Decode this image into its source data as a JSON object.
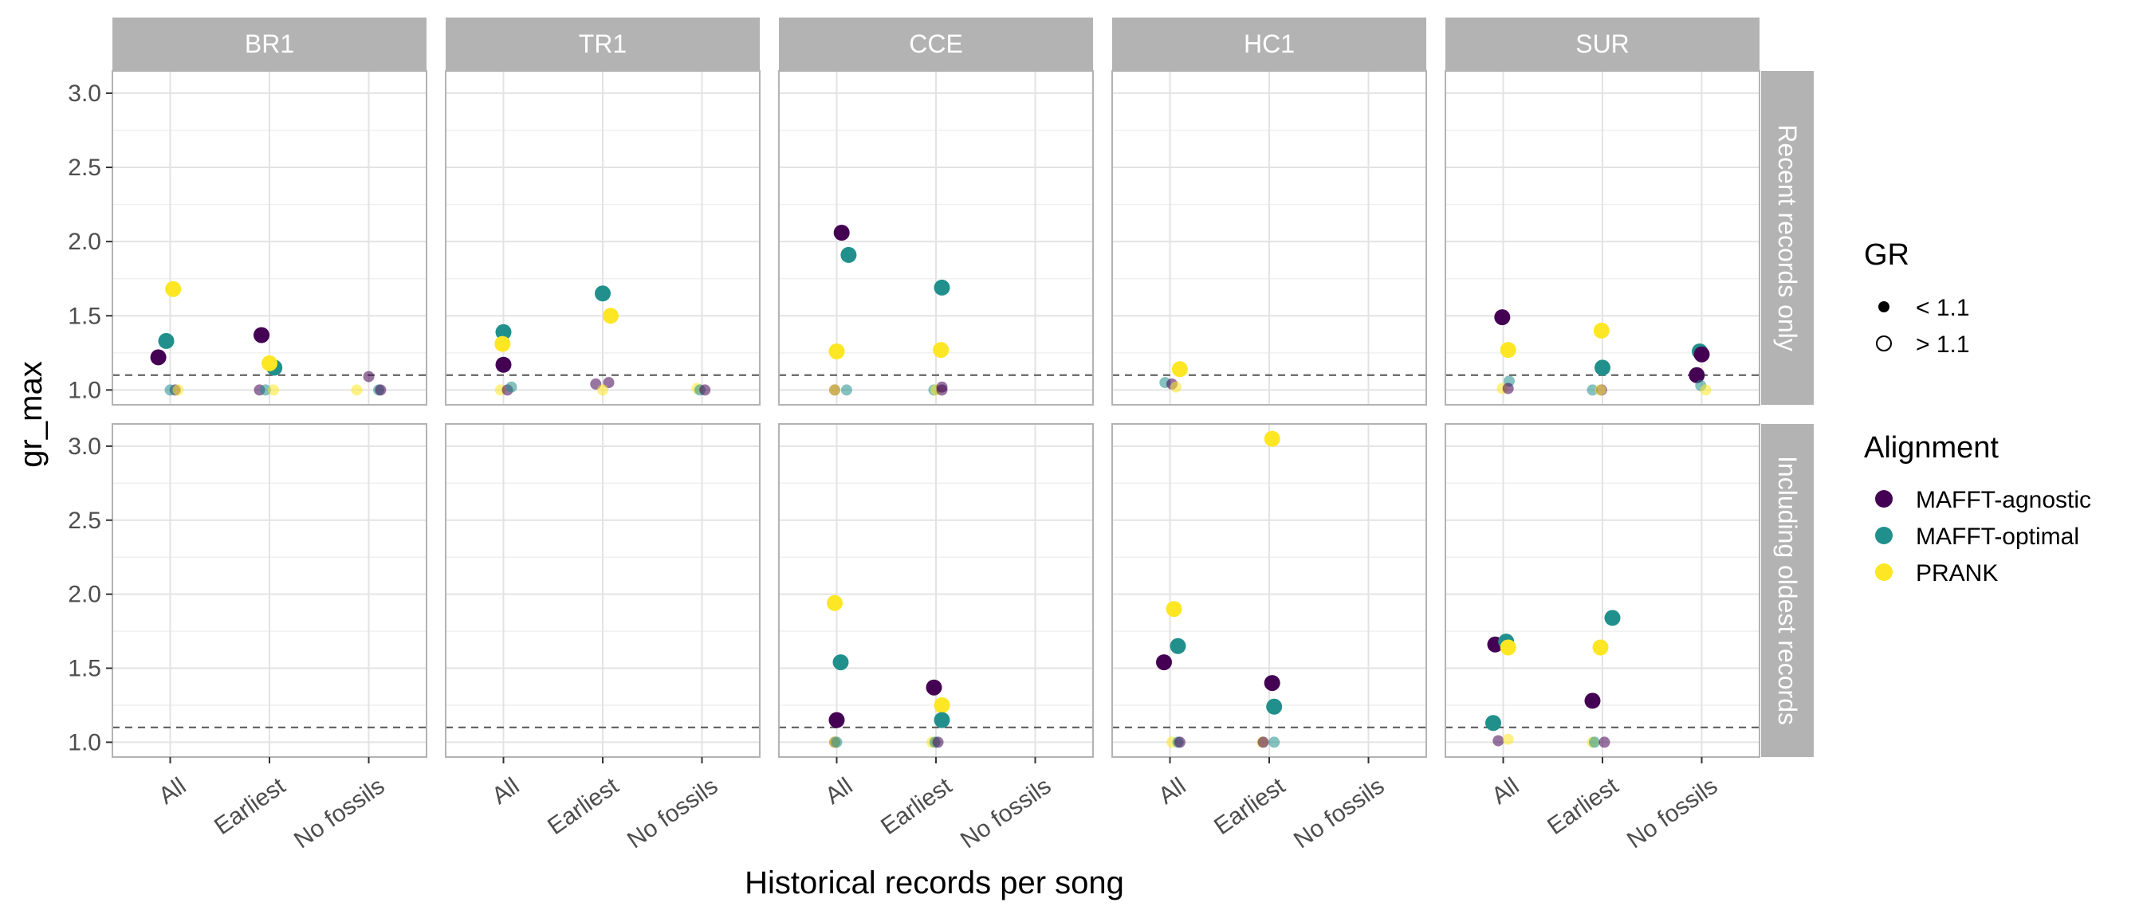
{
  "chart_data": {
    "type": "scatter",
    "xlabel": "Historical records per song",
    "ylabel": "gr_max",
    "categories": [
      "All",
      "Earliest",
      "No fossils"
    ],
    "ylim": [
      0.9,
      3.15
    ],
    "yticks": [
      1.0,
      1.5,
      2.0,
      2.5,
      3.0
    ],
    "ytick_labels": [
      "1.0",
      "1.5",
      "2.0",
      "2.5",
      "3.0"
    ],
    "reference_line": 1.1,
    "grid": true,
    "columns": [
      "BR1",
      "TR1",
      "CCE",
      "HC1",
      "SUR"
    ],
    "rows": [
      "Recent records only",
      "Including oldest records"
    ],
    "legend_position": "right",
    "legend": {
      "gr_title": "GR",
      "gr_items": [
        "< 1.1",
        "> 1.1"
      ],
      "alignment_title": "Alignment",
      "alignment_items": [
        "MAFFT-agnostic",
        "MAFFT-optimal",
        "PRANK"
      ]
    },
    "colors": {
      "MAFFT-agnostic": "#440154",
      "MAFFT-optimal": "#21908C",
      "PRANK": "#FDE725",
      "strip": "#B3B3B3"
    },
    "points": [
      {
        "row": 0,
        "col": 0,
        "x": "All",
        "y": 1.22,
        "series": "MAFFT-agnostic",
        "gr": "> 1.1",
        "j": -0.12
      },
      {
        "row": 0,
        "col": 0,
        "x": "All",
        "y": 1.33,
        "series": "MAFFT-optimal",
        "gr": "> 1.1",
        "j": -0.04
      },
      {
        "row": 0,
        "col": 0,
        "x": "All",
        "y": 1.68,
        "series": "PRANK",
        "gr": "> 1.1",
        "j": 0.03
      },
      {
        "row": 0,
        "col": 0,
        "x": "All",
        "y": 1.0,
        "series": "MAFFT-agnostic",
        "gr": "< 1.1",
        "j": 0.05
      },
      {
        "row": 0,
        "col": 0,
        "x": "All",
        "y": 1.0,
        "series": "MAFFT-optimal",
        "gr": "< 1.1",
        "j": 0.0
      },
      {
        "row": 0,
        "col": 0,
        "x": "All",
        "y": 1.0,
        "series": "PRANK",
        "gr": "< 1.1",
        "j": 0.08
      },
      {
        "row": 0,
        "col": 0,
        "x": "Earliest",
        "y": 1.37,
        "series": "MAFFT-agnostic",
        "gr": "> 1.1",
        "j": -0.08
      },
      {
        "row": 0,
        "col": 0,
        "x": "Earliest",
        "y": 1.15,
        "series": "MAFFT-optimal",
        "gr": "> 1.1",
        "j": 0.05
      },
      {
        "row": 0,
        "col": 0,
        "x": "Earliest",
        "y": 1.18,
        "series": "PRANK",
        "gr": "> 1.1",
        "j": 0.0
      },
      {
        "row": 0,
        "col": 0,
        "x": "Earliest",
        "y": 1.0,
        "series": "MAFFT-agnostic",
        "gr": "< 1.1",
        "j": -0.1
      },
      {
        "row": 0,
        "col": 0,
        "x": "Earliest",
        "y": 1.0,
        "series": "MAFFT-optimal",
        "gr": "< 1.1",
        "j": -0.04
      },
      {
        "row": 0,
        "col": 0,
        "x": "Earliest",
        "y": 1.0,
        "series": "PRANK",
        "gr": "< 1.1",
        "j": 0.04
      },
      {
        "row": 0,
        "col": 0,
        "x": "No fossils",
        "y": 1.09,
        "series": "MAFFT-agnostic",
        "gr": "< 1.1",
        "j": 0.0
      },
      {
        "row": 0,
        "col": 0,
        "x": "No fossils",
        "y": 1.0,
        "series": "PRANK",
        "gr": "< 1.1",
        "j": -0.12
      },
      {
        "row": 0,
        "col": 0,
        "x": "No fossils",
        "y": 1.0,
        "series": "MAFFT-optimal",
        "gr": "< 1.1",
        "j": 0.1
      },
      {
        "row": 0,
        "col": 0,
        "x": "No fossils",
        "y": 1.0,
        "series": "MAFFT-agnostic",
        "gr": "< 1.1",
        "j": 0.12
      },
      {
        "row": 0,
        "col": 1,
        "x": "All",
        "y": 1.39,
        "series": "MAFFT-optimal",
        "gr": "> 1.1",
        "j": 0.0
      },
      {
        "row": 0,
        "col": 1,
        "x": "All",
        "y": 1.31,
        "series": "PRANK",
        "gr": "> 1.1",
        "j": -0.01
      },
      {
        "row": 0,
        "col": 1,
        "x": "All",
        "y": 1.17,
        "series": "MAFFT-agnostic",
        "gr": "> 1.1",
        "j": 0.0
      },
      {
        "row": 0,
        "col": 1,
        "x": "All",
        "y": 1.0,
        "series": "PRANK",
        "gr": "< 1.1",
        "j": -0.03
      },
      {
        "row": 0,
        "col": 1,
        "x": "All",
        "y": 1.0,
        "series": "MAFFT-agnostic",
        "gr": "< 1.1",
        "j": 0.04
      },
      {
        "row": 0,
        "col": 1,
        "x": "All",
        "y": 1.02,
        "series": "MAFFT-optimal",
        "gr": "< 1.1",
        "j": 0.08
      },
      {
        "row": 0,
        "col": 1,
        "x": "Earliest",
        "y": 1.65,
        "series": "MAFFT-optimal",
        "gr": "> 1.1",
        "j": 0.0
      },
      {
        "row": 0,
        "col": 1,
        "x": "Earliest",
        "y": 1.5,
        "series": "PRANK",
        "gr": "> 1.1",
        "j": 0.08
      },
      {
        "row": 0,
        "col": 1,
        "x": "Earliest",
        "y": 1.04,
        "series": "MAFFT-agnostic",
        "gr": "< 1.1",
        "j": -0.07
      },
      {
        "row": 0,
        "col": 1,
        "x": "Earliest",
        "y": 1.05,
        "series": "MAFFT-agnostic",
        "gr": "< 1.1",
        "j": 0.06
      },
      {
        "row": 0,
        "col": 1,
        "x": "Earliest",
        "y": 1.0,
        "series": "PRANK",
        "gr": "< 1.1",
        "j": 0.0
      },
      {
        "row": 0,
        "col": 1,
        "x": "No fossils",
        "y": 1.01,
        "series": "PRANK",
        "gr": "< 1.1",
        "j": -0.05
      },
      {
        "row": 0,
        "col": 1,
        "x": "No fossils",
        "y": 1.0,
        "series": "MAFFT-optimal",
        "gr": "< 1.1",
        "j": -0.02
      },
      {
        "row": 0,
        "col": 1,
        "x": "No fossils",
        "y": 1.0,
        "series": "MAFFT-agnostic",
        "gr": "< 1.1",
        "j": 0.03
      },
      {
        "row": 0,
        "col": 2,
        "x": "All",
        "y": 2.06,
        "series": "MAFFT-agnostic",
        "gr": "> 1.1",
        "j": 0.05
      },
      {
        "row": 0,
        "col": 2,
        "x": "All",
        "y": 1.91,
        "series": "MAFFT-optimal",
        "gr": "> 1.1",
        "j": 0.12
      },
      {
        "row": 0,
        "col": 2,
        "x": "All",
        "y": 1.26,
        "series": "PRANK",
        "gr": "> 1.1",
        "j": 0.0
      },
      {
        "row": 0,
        "col": 2,
        "x": "All",
        "y": 1.0,
        "series": "MAFFT-agnostic",
        "gr": "< 1.1",
        "j": -0.02
      },
      {
        "row": 0,
        "col": 2,
        "x": "All",
        "y": 1.0,
        "series": "PRANK",
        "gr": "< 1.1",
        "j": -0.02
      },
      {
        "row": 0,
        "col": 2,
        "x": "All",
        "y": 1.0,
        "series": "MAFFT-optimal",
        "gr": "< 1.1",
        "j": 0.1
      },
      {
        "row": 0,
        "col": 2,
        "x": "Earliest",
        "y": 1.69,
        "series": "MAFFT-optimal",
        "gr": "> 1.1",
        "j": 0.06
      },
      {
        "row": 0,
        "col": 2,
        "x": "Earliest",
        "y": 1.27,
        "series": "PRANK",
        "gr": "> 1.1",
        "j": 0.05
      },
      {
        "row": 0,
        "col": 2,
        "x": "Earliest",
        "y": 1.0,
        "series": "MAFFT-optimal",
        "gr": "< 1.1",
        "j": -0.02
      },
      {
        "row": 0,
        "col": 2,
        "x": "Earliest",
        "y": 1.0,
        "series": "PRANK",
        "gr": "< 1.1",
        "j": 0.0
      },
      {
        "row": 0,
        "col": 2,
        "x": "Earliest",
        "y": 1.0,
        "series": "MAFFT-agnostic",
        "gr": "< 1.1",
        "j": 0.06
      },
      {
        "row": 0,
        "col": 2,
        "x": "Earliest",
        "y": 1.02,
        "series": "MAFFT-agnostic",
        "gr": "< 1.1",
        "j": 0.06
      },
      {
        "row": 0,
        "col": 3,
        "x": "All",
        "y": 1.14,
        "series": "PRANK",
        "gr": "> 1.1",
        "j": 0.1
      },
      {
        "row": 0,
        "col": 3,
        "x": "All",
        "y": 1.05,
        "series": "MAFFT-optimal",
        "gr": "< 1.1",
        "j": -0.05
      },
      {
        "row": 0,
        "col": 3,
        "x": "All",
        "y": 1.04,
        "series": "MAFFT-agnostic",
        "gr": "< 1.1",
        "j": 0.02
      },
      {
        "row": 0,
        "col": 3,
        "x": "All",
        "y": 1.02,
        "series": "PRANK",
        "gr": "< 1.1",
        "j": 0.06
      },
      {
        "row": 0,
        "col": 4,
        "x": "All",
        "y": 1.49,
        "series": "MAFFT-agnostic",
        "gr": "> 1.1",
        "j": -0.01
      },
      {
        "row": 0,
        "col": 4,
        "x": "All",
        "y": 1.27,
        "series": "PRANK",
        "gr": "> 1.1",
        "j": 0.05
      },
      {
        "row": 0,
        "col": 4,
        "x": "All",
        "y": 1.06,
        "series": "MAFFT-optimal",
        "gr": "< 1.1",
        "j": 0.06
      },
      {
        "row": 0,
        "col": 4,
        "x": "All",
        "y": 1.01,
        "series": "PRANK",
        "gr": "< 1.1",
        "j": -0.01
      },
      {
        "row": 0,
        "col": 4,
        "x": "All",
        "y": 1.01,
        "series": "MAFFT-agnostic",
        "gr": "< 1.1",
        "j": 0.05
      },
      {
        "row": 0,
        "col": 4,
        "x": "Earliest",
        "y": 1.4,
        "series": "PRANK",
        "gr": "> 1.1",
        "j": -0.01
      },
      {
        "row": 0,
        "col": 4,
        "x": "Earliest",
        "y": 1.15,
        "series": "MAFFT-optimal",
        "gr": "> 1.1",
        "j": 0.0
      },
      {
        "row": 0,
        "col": 4,
        "x": "Earliest",
        "y": 1.0,
        "series": "MAFFT-optimal",
        "gr": "< 1.1",
        "j": -0.1
      },
      {
        "row": 0,
        "col": 4,
        "x": "Earliest",
        "y": 1.0,
        "series": "MAFFT-agnostic",
        "gr": "< 1.1",
        "j": -0.01
      },
      {
        "row": 0,
        "col": 4,
        "x": "Earliest",
        "y": 1.0,
        "series": "PRANK",
        "gr": "< 1.1",
        "j": -0.02
      },
      {
        "row": 0,
        "col": 4,
        "x": "No fossils",
        "y": 1.26,
        "series": "MAFFT-optimal",
        "gr": "> 1.1",
        "j": -0.02
      },
      {
        "row": 0,
        "col": 4,
        "x": "No fossils",
        "y": 1.24,
        "series": "MAFFT-agnostic",
        "gr": "> 1.1",
        "j": 0.0
      },
      {
        "row": 0,
        "col": 4,
        "x": "No fossils",
        "y": 1.1,
        "series": "MAFFT-agnostic",
        "gr": "> 1.1",
        "j": -0.05
      },
      {
        "row": 0,
        "col": 4,
        "x": "No fossils",
        "y": 1.03,
        "series": "MAFFT-optimal",
        "gr": "< 1.1",
        "j": -0.01
      },
      {
        "row": 0,
        "col": 4,
        "x": "No fossils",
        "y": 1.0,
        "series": "PRANK",
        "gr": "< 1.1",
        "j": 0.04
      },
      {
        "row": 1,
        "col": 2,
        "x": "All",
        "y": 1.94,
        "series": "PRANK",
        "gr": "> 1.1",
        "j": -0.02
      },
      {
        "row": 1,
        "col": 2,
        "x": "All",
        "y": 1.54,
        "series": "MAFFT-optimal",
        "gr": "> 1.1",
        "j": 0.04
      },
      {
        "row": 1,
        "col": 2,
        "x": "All",
        "y": 1.15,
        "series": "MAFFT-agnostic",
        "gr": "> 1.1",
        "j": 0.0
      },
      {
        "row": 1,
        "col": 2,
        "x": "All",
        "y": 1.0,
        "series": "MAFFT-agnostic",
        "gr": "< 1.1",
        "j": -0.02
      },
      {
        "row": 1,
        "col": 2,
        "x": "All",
        "y": 1.0,
        "series": "PRANK",
        "gr": "< 1.1",
        "j": -0.02
      },
      {
        "row": 1,
        "col": 2,
        "x": "All",
        "y": 1.0,
        "series": "MAFFT-optimal",
        "gr": "< 1.1",
        "j": 0.0
      },
      {
        "row": 1,
        "col": 2,
        "x": "Earliest",
        "y": 1.37,
        "series": "MAFFT-agnostic",
        "gr": "> 1.1",
        "j": -0.02
      },
      {
        "row": 1,
        "col": 2,
        "x": "Earliest",
        "y": 1.25,
        "series": "PRANK",
        "gr": "> 1.1",
        "j": 0.06
      },
      {
        "row": 1,
        "col": 2,
        "x": "Earliest",
        "y": 1.15,
        "series": "MAFFT-optimal",
        "gr": "> 1.1",
        "j": 0.06
      },
      {
        "row": 1,
        "col": 2,
        "x": "Earliest",
        "y": 1.0,
        "series": "PRANK",
        "gr": "< 1.1",
        "j": -0.04
      },
      {
        "row": 1,
        "col": 2,
        "x": "Earliest",
        "y": 1.0,
        "series": "MAFFT-optimal",
        "gr": "< 1.1",
        "j": -0.01
      },
      {
        "row": 1,
        "col": 2,
        "x": "Earliest",
        "y": 1.0,
        "series": "MAFFT-agnostic",
        "gr": "< 1.1",
        "j": 0.02
      },
      {
        "row": 1,
        "col": 3,
        "x": "All",
        "y": 1.9,
        "series": "PRANK",
        "gr": "> 1.1",
        "j": 0.04
      },
      {
        "row": 1,
        "col": 3,
        "x": "All",
        "y": 1.65,
        "series": "MAFFT-optimal",
        "gr": "> 1.1",
        "j": 0.08
      },
      {
        "row": 1,
        "col": 3,
        "x": "All",
        "y": 1.54,
        "series": "MAFFT-agnostic",
        "gr": "> 1.1",
        "j": -0.06
      },
      {
        "row": 1,
        "col": 3,
        "x": "All",
        "y": 1.0,
        "series": "PRANK",
        "gr": "< 1.1",
        "j": 0.02
      },
      {
        "row": 1,
        "col": 3,
        "x": "All",
        "y": 1.0,
        "series": "MAFFT-optimal",
        "gr": "< 1.1",
        "j": 0.08
      },
      {
        "row": 1,
        "col": 3,
        "x": "All",
        "y": 1.0,
        "series": "MAFFT-agnostic",
        "gr": "< 1.1",
        "j": 0.1
      },
      {
        "row": 1,
        "col": 3,
        "x": "Earliest",
        "y": 3.05,
        "series": "PRANK",
        "gr": "> 1.1",
        "j": 0.03
      },
      {
        "row": 1,
        "col": 3,
        "x": "Earliest",
        "y": 1.4,
        "series": "MAFFT-agnostic",
        "gr": "> 1.1",
        "j": 0.03
      },
      {
        "row": 1,
        "col": 3,
        "x": "Earliest",
        "y": 1.24,
        "series": "MAFFT-optimal",
        "gr": "> 1.1",
        "j": 0.05
      },
      {
        "row": 1,
        "col": 3,
        "x": "Earliest",
        "y": 1.0,
        "series": "PRANK",
        "gr": "< 1.1",
        "j": -0.07
      },
      {
        "row": 1,
        "col": 3,
        "x": "Earliest",
        "y": 1.0,
        "series": "MAFFT-agnostic",
        "gr": "< 1.1",
        "j": -0.06
      },
      {
        "row": 1,
        "col": 3,
        "x": "Earliest",
        "y": 1.0,
        "series": "MAFFT-optimal",
        "gr": "< 1.1",
        "j": 0.05
      },
      {
        "row": 1,
        "col": 4,
        "x": "All",
        "y": 1.66,
        "series": "MAFFT-agnostic",
        "gr": "> 1.1",
        "j": -0.08
      },
      {
        "row": 1,
        "col": 4,
        "x": "All",
        "y": 1.68,
        "series": "MAFFT-optimal",
        "gr": "> 1.1",
        "j": 0.03
      },
      {
        "row": 1,
        "col": 4,
        "x": "All",
        "y": 1.64,
        "series": "PRANK",
        "gr": "> 1.1",
        "j": 0.05
      },
      {
        "row": 1,
        "col": 4,
        "x": "All",
        "y": 1.13,
        "series": "MAFFT-optimal",
        "gr": "> 1.1",
        "j": -0.1
      },
      {
        "row": 1,
        "col": 4,
        "x": "All",
        "y": 1.01,
        "series": "MAFFT-agnostic",
        "gr": "< 1.1",
        "j": -0.05
      },
      {
        "row": 1,
        "col": 4,
        "x": "All",
        "y": 1.02,
        "series": "PRANK",
        "gr": "< 1.1",
        "j": 0.05
      },
      {
        "row": 1,
        "col": 4,
        "x": "Earliest",
        "y": 1.28,
        "series": "MAFFT-agnostic",
        "gr": "> 1.1",
        "j": -0.1
      },
      {
        "row": 1,
        "col": 4,
        "x": "Earliest",
        "y": 1.64,
        "series": "PRANK",
        "gr": "> 1.1",
        "j": -0.02
      },
      {
        "row": 1,
        "col": 4,
        "x": "Earliest",
        "y": 1.84,
        "series": "MAFFT-optimal",
        "gr": "> 1.1",
        "j": 0.1
      },
      {
        "row": 1,
        "col": 4,
        "x": "Earliest",
        "y": 1.0,
        "series": "PRANK",
        "gr": "< 1.1",
        "j": -0.1
      },
      {
        "row": 1,
        "col": 4,
        "x": "Earliest",
        "y": 1.0,
        "series": "MAFFT-optimal",
        "gr": "< 1.1",
        "j": -0.08
      },
      {
        "row": 1,
        "col": 4,
        "x": "Earliest",
        "y": 1.0,
        "series": "MAFFT-agnostic",
        "gr": "< 1.1",
        "j": 0.02
      }
    ]
  }
}
